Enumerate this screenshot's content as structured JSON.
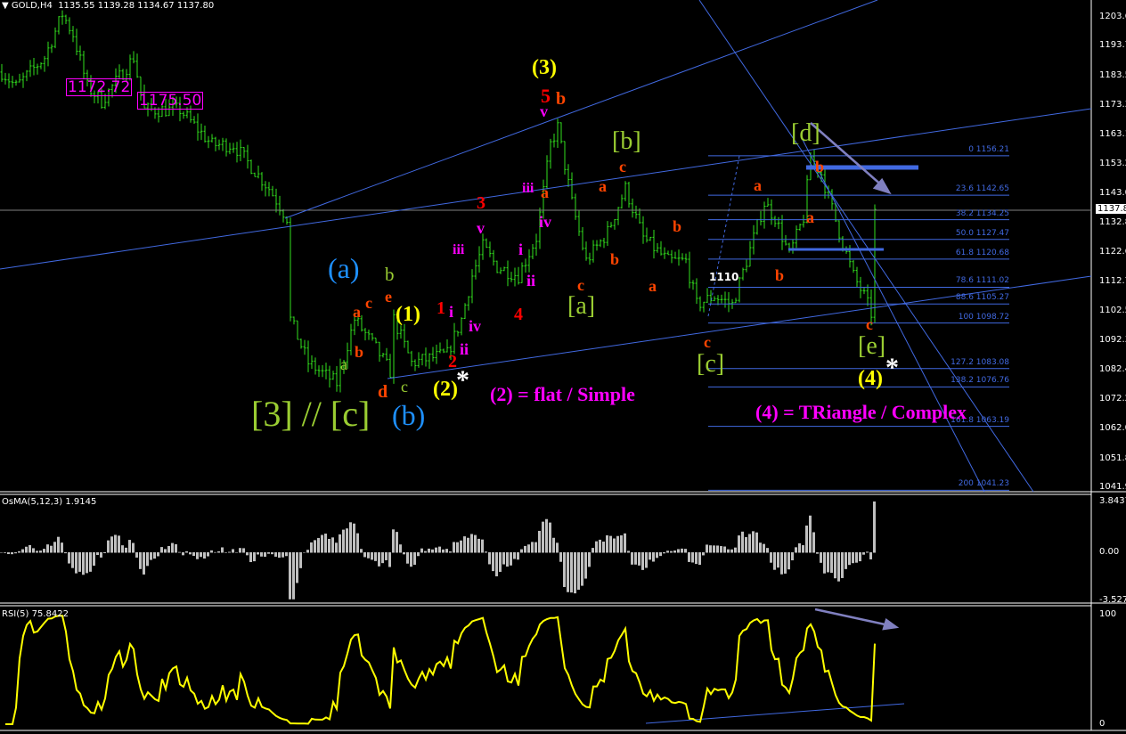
{
  "header": {
    "symbol": "GOLD,H4",
    "open": "1135.55",
    "high": "1139.28",
    "low": "1134.67",
    "close": "1137.80"
  },
  "price_axis": {
    "ticks": [
      "1203.65",
      "1193.75",
      "1183.55",
      "1173.35",
      "1163.15",
      "1153.25",
      "1143.05",
      "1132.85",
      "1122.65",
      "1112.75",
      "1102.55",
      "1092.35",
      "1082.45",
      "1072.25",
      "1062.05",
      "1051.85",
      "1041.95"
    ],
    "current": "1137.80"
  },
  "boxes": [
    "1172.72",
    "1175.50"
  ],
  "fib_levels": [
    {
      "level": "0",
      "price": "1156.21"
    },
    {
      "level": "23.6",
      "price": "1142.65"
    },
    {
      "level": "38.2",
      "price": "1134.25"
    },
    {
      "level": "50.0",
      "price": "1127.47"
    },
    {
      "level": "61.8",
      "price": "1120.68"
    },
    {
      "level": "78.6",
      "price": "1111.02"
    },
    {
      "level": "88.6",
      "price": "1105.27"
    },
    {
      "level": "100",
      "price": "1098.72"
    },
    {
      "level": "127.2",
      "price": "1083.08"
    },
    {
      "level": "138.2",
      "price": "1076.76"
    },
    {
      "level": "161.8",
      "price": "1063.19"
    },
    {
      "level": "200",
      "price": "1041.23"
    }
  ],
  "labels": [
    "(a)",
    "b",
    "e",
    "c",
    "a",
    "b",
    "a",
    "(1)",
    "1",
    "i",
    "2",
    "ii",
    "iv",
    "iii",
    "d",
    "c",
    "(2)",
    "*",
    "[3] // [c]",
    "(b)",
    "(2) = flat / Simple",
    "v",
    "3",
    "4",
    "i",
    "ii",
    "iii",
    "a",
    "iv",
    "v",
    "5",
    "b",
    "(3)",
    "c",
    "[a]",
    "[b]",
    "c",
    "a",
    "b",
    "a",
    "b",
    "1110",
    "c",
    "[c]",
    "a",
    "b",
    "[d]",
    "b",
    "a",
    "c",
    "[e]",
    "(4)",
    "*",
    "(4) = TRiangle / Complex"
  ],
  "osma": {
    "title": "OsMA(5,12,3) 1.9145",
    "ticks": [
      "3.8437",
      "0.00",
      "-3.527"
    ]
  },
  "rsi": {
    "title": "RSI(5) 75.8422",
    "ticks": [
      "100",
      "0"
    ]
  },
  "colors": {
    "bars": "#32e01e",
    "trend": "#4169e1",
    "rsi": "#ffff00",
    "osma": "#c0c0c0",
    "arrow": "#8080c0"
  },
  "chart_data": {
    "type": "ohlc",
    "symbol": "GOLD",
    "timeframe": "H4",
    "ylim": [
      1041.95,
      1203.65
    ],
    "approx_price_path": [
      [
        0,
        1185
      ],
      [
        4,
        1180
      ],
      [
        12,
        1190
      ],
      [
        17,
        1205
      ],
      [
        20,
        1198
      ],
      [
        24,
        1180
      ],
      [
        28,
        1175
      ],
      [
        37,
        1190
      ],
      [
        40,
        1172
      ],
      [
        50,
        1172
      ],
      [
        59,
        1160
      ],
      [
        65,
        1160
      ],
      [
        75,
        1145
      ],
      [
        80,
        1135
      ],
      [
        81,
        1100
      ],
      [
        86,
        1085
      ],
      [
        94,
        1078
      ],
      [
        99,
        1100
      ],
      [
        105,
        1090
      ],
      [
        109,
        1082
      ],
      [
        110,
        1100
      ],
      [
        115,
        1085
      ],
      [
        125,
        1088
      ],
      [
        129,
        1100
      ],
      [
        132,
        1115
      ],
      [
        135,
        1125
      ],
      [
        139,
        1118
      ],
      [
        145,
        1115
      ],
      [
        150,
        1128
      ],
      [
        154,
        1160
      ],
      [
        156,
        1166
      ],
      [
        160,
        1140
      ],
      [
        164,
        1120
      ],
      [
        170,
        1130
      ],
      [
        175,
        1145
      ],
      [
        180,
        1128
      ],
      [
        187,
        1120
      ],
      [
        192,
        1120
      ],
      [
        195,
        1105
      ],
      [
        200,
        1108
      ],
      [
        205,
        1105
      ],
      [
        209,
        1120
      ],
      [
        214,
        1140
      ],
      [
        217,
        1135
      ],
      [
        221,
        1122
      ],
      [
        225,
        1135
      ],
      [
        227,
        1156
      ],
      [
        230,
        1150
      ],
      [
        235,
        1130
      ],
      [
        239,
        1115
      ],
      [
        242,
        1108
      ],
      [
        244,
        1102
      ],
      [
        245,
        1140
      ]
    ],
    "last_close": 1137.8
  }
}
